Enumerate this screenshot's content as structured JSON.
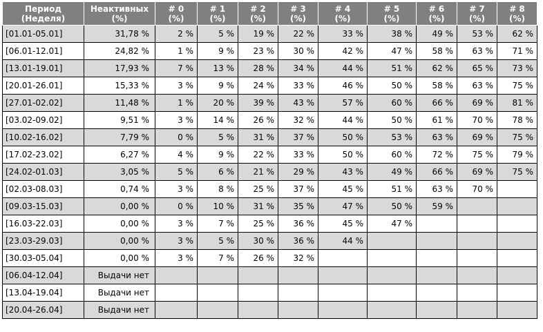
{
  "headers": [
    {
      "line1": "Период",
      "line2": "(Неделя)"
    },
    {
      "line1": "Неактивных",
      "line2": "(%)"
    },
    {
      "line1": "# 0",
      "line2": "(%)"
    },
    {
      "line1": "# 1",
      "line2": "(%)"
    },
    {
      "line1": "# 2",
      "line2": "(%)"
    },
    {
      "line1": "# 3",
      "line2": "(%)"
    },
    {
      "line1": "# 4",
      "line2": "(%)"
    },
    {
      "line1": "# 5",
      "line2": "(%)"
    },
    {
      "line1": "# 6",
      "line2": "(%)"
    },
    {
      "line1": "# 7",
      "line2": "(%)"
    },
    {
      "line1": "# 8",
      "line2": "(%)"
    }
  ],
  "rows": [
    {
      "period": "[01.01-05.01]",
      "inactive": "31,78 %",
      "values": [
        "2 %",
        "5 %",
        "19 %",
        "22 %",
        "33 %",
        "38 %",
        "49 %",
        "53 %",
        "62 %"
      ]
    },
    {
      "period": "[06.01-12.01]",
      "inactive": "24,82 %",
      "values": [
        "1 %",
        "9 %",
        "23 %",
        "30 %",
        "42 %",
        "47 %",
        "58 %",
        "63 %",
        "71 %"
      ]
    },
    {
      "period": "[13.01-19.01]",
      "inactive": "17,93 %",
      "values": [
        "7 %",
        "13 %",
        "28 %",
        "34 %",
        "44 %",
        "51 %",
        "62 %",
        "65 %",
        "73 %"
      ]
    },
    {
      "period": "[20.01-26.01]",
      "inactive": "15,33 %",
      "values": [
        "3 %",
        "9 %",
        "24 %",
        "33 %",
        "46 %",
        "50 %",
        "58 %",
        "63 %",
        "75 %"
      ]
    },
    {
      "period": "[27.01-02.02]",
      "inactive": "11,48 %",
      "values": [
        "1 %",
        "20 %",
        "39 %",
        "43 %",
        "57 %",
        "60 %",
        "66 %",
        "69 %",
        "81 %"
      ]
    },
    {
      "period": "[03.02-09.02]",
      "inactive": "9,51 %",
      "values": [
        "3 %",
        "14 %",
        "26 %",
        "32 %",
        "44 %",
        "50 %",
        "61 %",
        "70 %",
        "78 %"
      ]
    },
    {
      "period": "[10.02-16.02]",
      "inactive": "7,79 %",
      "values": [
        "0 %",
        "5 %",
        "31 %",
        "37 %",
        "50 %",
        "53 %",
        "63 %",
        "69 %",
        "75 %"
      ]
    },
    {
      "period": "[17.02-23.02]",
      "inactive": "6,27 %",
      "values": [
        "4 %",
        "9 %",
        "22 %",
        "33 %",
        "50 %",
        "60 %",
        "72 %",
        "75 %",
        "79 %"
      ]
    },
    {
      "period": "[24.02-01.03]",
      "inactive": "3,05 %",
      "values": [
        "5 %",
        "6 %",
        "21 %",
        "29 %",
        "43 %",
        "49 %",
        "66 %",
        "69 %",
        "75 %"
      ]
    },
    {
      "period": "[02.03-08.03]",
      "inactive": "0,74 %",
      "values": [
        "3 %",
        "8 %",
        "25 %",
        "37 %",
        "45 %",
        "51 %",
        "63 %",
        "70 %",
        ""
      ]
    },
    {
      "period": "[09.03-15.03]",
      "inactive": "0,00 %",
      "values": [
        "0 %",
        "10 %",
        "31 %",
        "35 %",
        "47 %",
        "50 %",
        "59 %",
        "",
        ""
      ]
    },
    {
      "period": "[16.03-22.03]",
      "inactive": "0,00 %",
      "values": [
        "3 %",
        "7 %",
        "25 %",
        "36 %",
        "45 %",
        "47 %",
        "",
        "",
        ""
      ]
    },
    {
      "period": "[23.03-29.03]",
      "inactive": "0,00 %",
      "values": [
        "3 %",
        "5 %",
        "30 %",
        "36 %",
        "44 %",
        "",
        "",
        "",
        ""
      ]
    },
    {
      "period": "[30.03-05.04]",
      "inactive": "0,00 %",
      "values": [
        "3 %",
        "7 %",
        "26 %",
        "32 %",
        "",
        "",
        "",
        "",
        ""
      ]
    },
    {
      "period": "[06.04-12.04]",
      "inactive": "Выдачи нет",
      "values": [
        "",
        "",
        "",
        "",
        "",
        "",
        "",
        "",
        ""
      ]
    },
    {
      "period": "[13.04-19.04]",
      "inactive": "Выдачи нет",
      "values": [
        "",
        "",
        "",
        "",
        "",
        "",
        "",
        "",
        ""
      ]
    },
    {
      "period": "[20.04-26.04]",
      "inactive": "Выдачи нет",
      "values": [
        "",
        "",
        "",
        "",
        "",
        "",
        "",
        "",
        ""
      ]
    }
  ]
}
